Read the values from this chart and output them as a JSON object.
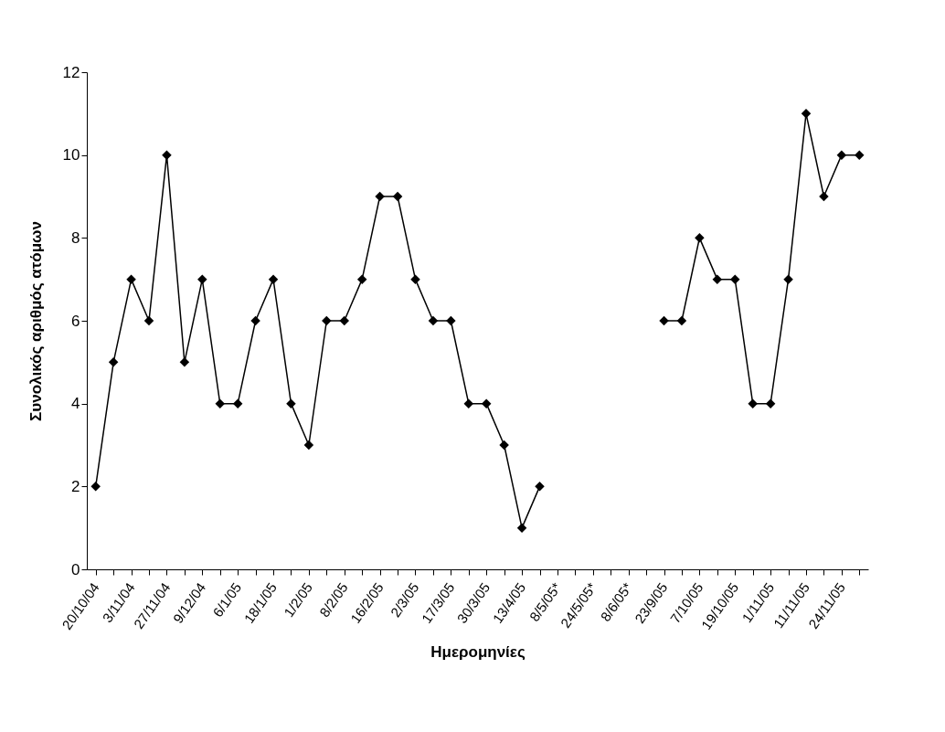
{
  "chart_data": {
    "type": "line",
    "xlabel": "Ημερομηνίες",
    "ylabel": "Συνολικός αριθμός ατόμων",
    "categories": [
      "20/10/04",
      null,
      "3/11/04",
      null,
      "27/11/04",
      null,
      "9/12/04",
      null,
      "6/1/05",
      null,
      "18/1/05",
      null,
      "1/2/05",
      null,
      "8/2/05",
      null,
      "16/2/05",
      null,
      "2/3/05",
      null,
      "17/3/05",
      null,
      "30/3/05",
      null,
      "13/4/05",
      null,
      "8/5/05*",
      null,
      "24/5/05*",
      null,
      "8/6/05*",
      null,
      "23/9/05",
      null,
      "7/10/05",
      null,
      "19/10/05",
      null,
      "1/11/05",
      null,
      "11/11/05",
      null,
      "24/11/05",
      null
    ],
    "series": [
      {
        "color": "#000000",
        "values": [
          2,
          5,
          7,
          6,
          10,
          5,
          7,
          4,
          4,
          6,
          7,
          4,
          3,
          6,
          6,
          7,
          9,
          9,
          7,
          6,
          6,
          4,
          4,
          3,
          1,
          2,
          null,
          null,
          null,
          null,
          null,
          null,
          6,
          6,
          8,
          7,
          7,
          4,
          4,
          7,
          11,
          9,
          10,
          10
        ]
      }
    ],
    "ylim": [
      0,
      12
    ],
    "yticks": [
      0,
      2,
      4,
      6,
      8,
      10,
      12
    ],
    "grid": false,
    "marker": "diamond",
    "line_style": "solid"
  }
}
